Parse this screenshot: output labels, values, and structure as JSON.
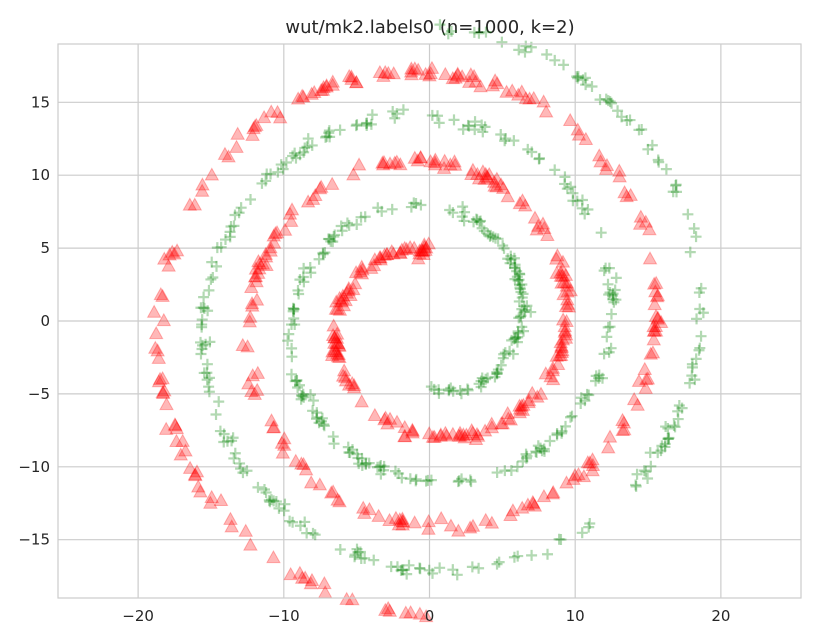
{
  "chart_data": {
    "type": "scatter",
    "title": "wut/mk2.labels0 (n=1000, k=2)",
    "xlabel": "",
    "ylabel": "",
    "xlim": [
      -25.5,
      25.5
    ],
    "ylim": [
      -19,
      19
    ],
    "xticks": [
      -20,
      -10,
      0,
      10,
      20
    ],
    "yticks": [
      -15,
      -10,
      -5,
      0,
      5,
      10,
      15
    ],
    "xtick_labels": [
      "−20",
      "−10",
      "0",
      "10",
      "20"
    ],
    "ytick_labels": [
      "−15",
      "−10",
      "−5",
      "0",
      "5",
      "10",
      "15"
    ],
    "grid": true,
    "legend": "none",
    "n_points": 1000,
    "series": [
      {
        "marker": "triangle-up",
        "color": "#ff0000",
        "spiral": {
          "theta_start_deg": 90,
          "r_start": 4.8,
          "r_per_revolution": 6.15,
          "revolutions": 2.5,
          "direction": "counterclockwise"
        },
        "count": 500
      },
      {
        "marker": "plus",
        "color": "#008000",
        "spiral": {
          "theta_start_deg": 270,
          "r_start": 4.8,
          "r_per_revolution": 6.15,
          "revolutions": 2.5,
          "direction": "counterclockwise"
        },
        "count": 500
      }
    ]
  }
}
